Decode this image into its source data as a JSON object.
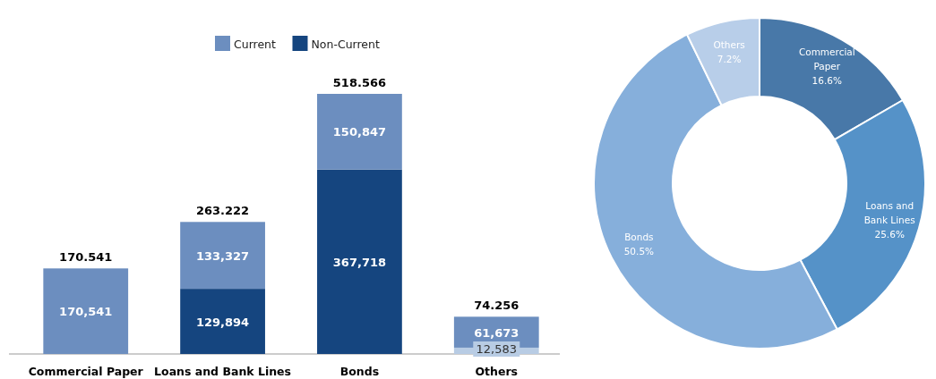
{
  "chart_data": [
    {
      "type": "bar",
      "stacked": true,
      "categories": [
        "Commercial Paper",
        "Loans and Bank Lines",
        "Bonds",
        "Others"
      ],
      "legend": "top",
      "series": [
        {
          "name": "Non-Current",
          "color": "#15457f",
          "colors": [
            null,
            "#15457f",
            "#15457f",
            "#b8cce4"
          ],
          "values": [
            null,
            129894,
            367718,
            12583
          ],
          "value_labels": [
            null,
            "129,894",
            "367,718",
            "12,583"
          ]
        },
        {
          "name": "Current",
          "color": "#6c8ebf",
          "values": [
            170541,
            133327,
            150847,
            61673
          ],
          "value_labels": [
            "170,541",
            "133,327",
            "150,847",
            "61,673"
          ]
        }
      ],
      "annotations": [
        {
          "text": "170.541",
          "x": "Commercial Paper",
          "y": 170541
        },
        {
          "text": "263.222",
          "x": "Loans and Bank Lines",
          "y": 263221
        },
        {
          "text": "518.566",
          "x": "Bonds",
          "y": 518565
        },
        {
          "text": "74.256",
          "x": "Others",
          "y": 74256
        }
      ]
    },
    {
      "type": "donut",
      "categories": [
        "Commercial Paper",
        "Loans and Bank Lines",
        "Bonds",
        "Others"
      ],
      "values": [
        16.6,
        25.6,
        50.5,
        7.2
      ],
      "colors": [
        "#4878a8",
        "#5592c8",
        "#86afdb",
        "#b8cee9"
      ],
      "value_labels": [
        "16.6%",
        "25.6%",
        "50.5%",
        "7.2%"
      ]
    }
  ]
}
